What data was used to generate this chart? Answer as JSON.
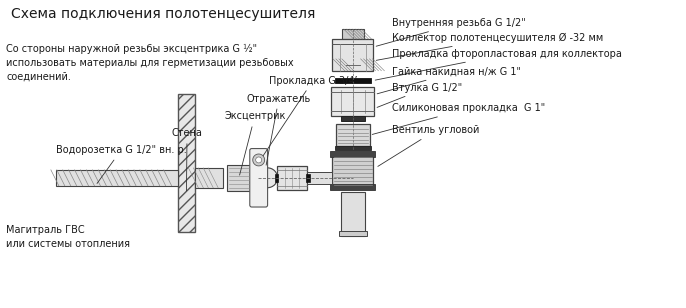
{
  "title": "Схема подключения полотенцесушителя",
  "background_color": "#ffffff",
  "text_color": "#1a1a1a",
  "line_color": "#333333",
  "left_text": "Со стороны наружной резьбы эксцентрика G ½\"\nиспользовать материалы для герметизации резьбовых\nсоединений.",
  "right_labels": [
    "Внутренняя резьба G 1/2\"",
    "Коллектор полотенцесушителя Ø -32 мм",
    "Прокладка фторопластовая для коллектора",
    "Гайка накидная н/ж G 1\"",
    "Втулка G 1/2\"",
    "Силиконовая прокладка  G 1\"",
    "Вентиль угловой"
  ],
  "left_labels": [
    "Прокладка G 3/4’",
    "Отражатель",
    "Эксцентрик",
    "Стена",
    "Водорозетка G 1/2\" вн. р.",
    "Магитраль ГВС\nили системы отопления"
  ],
  "fig_width": 6.86,
  "fig_height": 3.08,
  "dpi": 100
}
